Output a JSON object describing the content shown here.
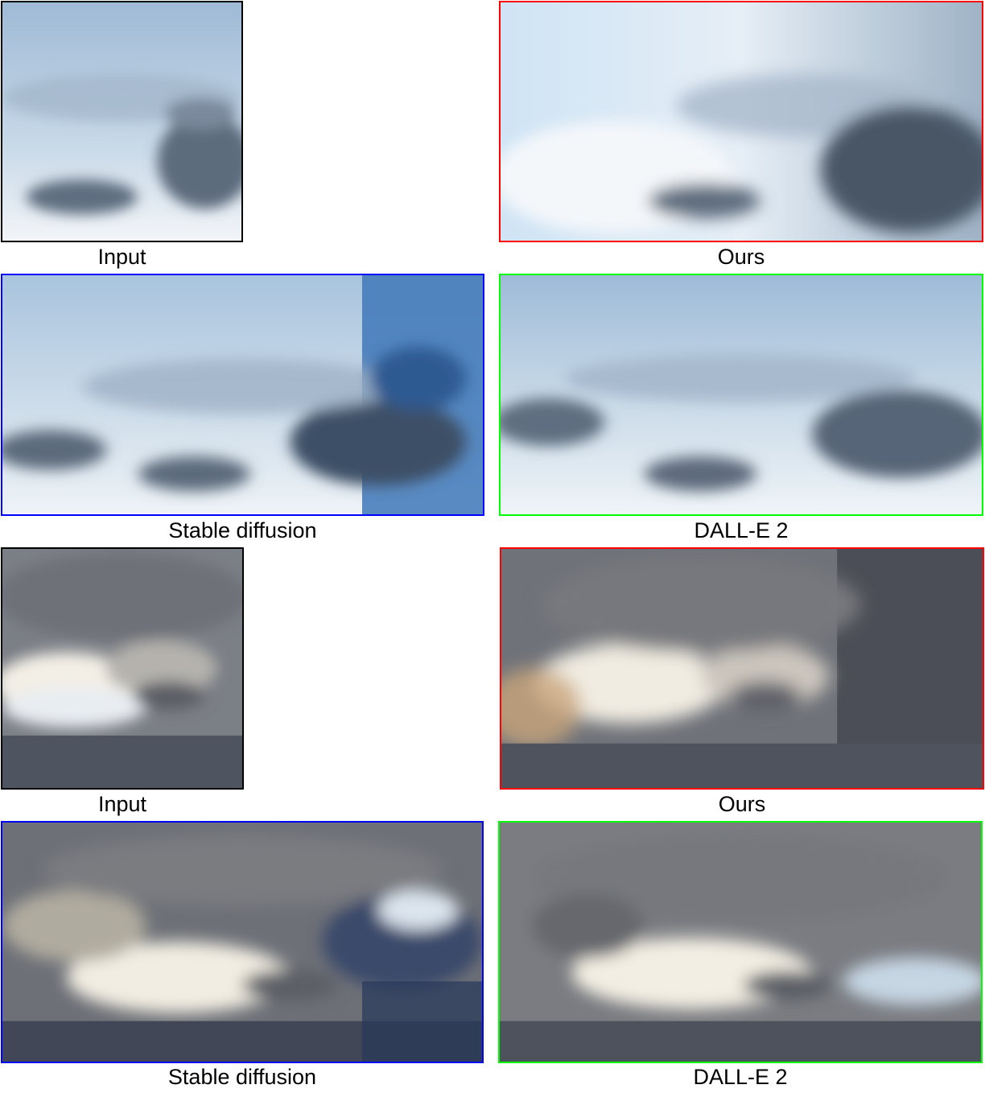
{
  "figure": {
    "rows": [
      {
        "input_caption": "Input",
        "ours_caption": "Ours",
        "sd_caption": "Stable diffusion",
        "dalle_caption": "DALL-E 2"
      },
      {
        "input_caption": "Input",
        "ours_caption": "Ours",
        "sd_caption": "Stable diffusion",
        "dalle_caption": "DALL-E 2"
      }
    ],
    "border_colors": {
      "input": "#000000",
      "ours": "#ff0000",
      "stable_diffusion": "#0000ff",
      "dalle2": "#00ff00"
    }
  }
}
